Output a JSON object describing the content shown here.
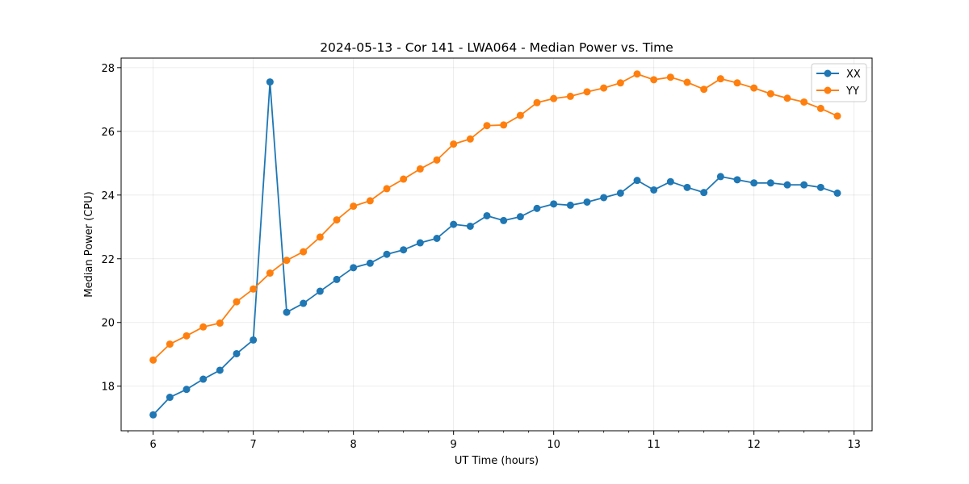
{
  "chart_data": {
    "type": "line",
    "title": "2024-05-13 - Cor 141 - LWA064 - Median Power vs. Time",
    "xlabel": "UT Time (hours)",
    "ylabel": "Median Power (CPU)",
    "xlim": [
      5.68,
      13.18
    ],
    "ylim": [
      16.6,
      28.3
    ],
    "xticks": [
      6,
      7,
      8,
      9,
      10,
      11,
      12,
      13
    ],
    "yticks": [
      18,
      20,
      22,
      24,
      26,
      28
    ],
    "grid": true,
    "legend_position": "top-right",
    "x": [
      6.0,
      6.1667,
      6.3333,
      6.5,
      6.6667,
      6.8333,
      7.0,
      7.1667,
      7.3333,
      7.5,
      7.6667,
      7.8333,
      8.0,
      8.1667,
      8.3333,
      8.5,
      8.6667,
      8.8333,
      9.0,
      9.1667,
      9.3333,
      9.5,
      9.6667,
      9.8333,
      10.0,
      10.1667,
      10.3333,
      10.5,
      10.6667,
      10.8333,
      11.0,
      11.1667,
      11.3333,
      11.5,
      11.6667,
      11.8333,
      12.0,
      12.1667,
      12.3333,
      12.5,
      12.6667,
      12.8333
    ],
    "series": [
      {
        "name": "XX",
        "color": "#1f77b4",
        "values": [
          17.1,
          17.65,
          17.9,
          18.22,
          18.5,
          19.02,
          19.45,
          27.55,
          20.32,
          20.6,
          20.98,
          21.35,
          21.72,
          21.86,
          22.14,
          22.28,
          22.5,
          22.64,
          23.08,
          23.02,
          23.35,
          23.2,
          23.32,
          23.58,
          23.72,
          23.68,
          23.78,
          23.92,
          24.06,
          24.46,
          24.16,
          24.42,
          24.24,
          24.08,
          24.58,
          24.48,
          24.38,
          24.38,
          24.32,
          24.32,
          24.24,
          24.06
        ]
      },
      {
        "name": "YY",
        "color": "#ff7f0e",
        "values": [
          18.82,
          19.32,
          19.58,
          19.86,
          19.98,
          20.65,
          21.05,
          21.55,
          21.95,
          22.22,
          22.68,
          23.22,
          23.65,
          23.82,
          24.2,
          24.5,
          24.82,
          25.1,
          25.6,
          25.76,
          26.18,
          26.2,
          26.5,
          26.9,
          27.03,
          27.1,
          27.24,
          27.36,
          27.52,
          27.8,
          27.62,
          27.7,
          27.54,
          27.32,
          27.65,
          27.52,
          27.36,
          27.18,
          27.04,
          26.92,
          26.72,
          26.48
        ]
      }
    ]
  }
}
